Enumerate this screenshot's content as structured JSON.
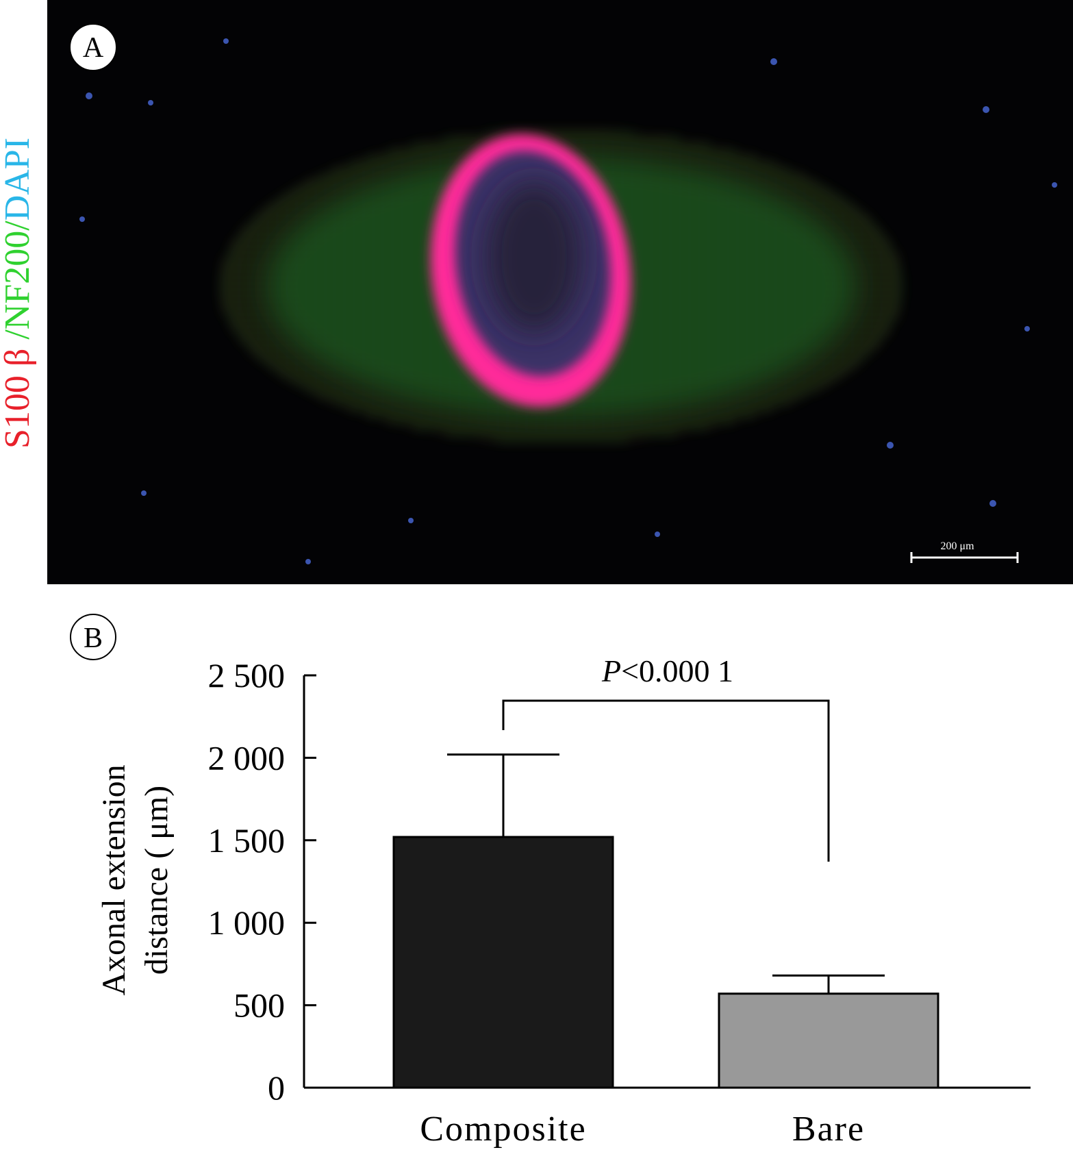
{
  "panel_a": {
    "label": "A",
    "stain_labels": [
      {
        "text": "S100 β",
        "color": "#e8202a"
      },
      {
        "text": " /NF200/",
        "color": "#2fd12f"
      },
      {
        "text": "DAPI",
        "color": "#29b6e8"
      }
    ],
    "scale_bar": "200 μm"
  },
  "chart_data": {
    "type": "bar",
    "panel_label": "B",
    "ylabel": [
      "Axonal extension",
      "distance ( μm)"
    ],
    "categories": [
      "Composite",
      "Bare"
    ],
    "values": [
      1520,
      570
    ],
    "errors": [
      500,
      110
    ],
    "colors": [
      "#1a1a1a",
      "#999999"
    ],
    "ylim": [
      0,
      2500
    ],
    "yticks": [
      0,
      500,
      {
        "value": 1000,
        "label": "1 000"
      },
      {
        "value": 1500,
        "label": "1 500"
      },
      {
        "value": 2000,
        "label": "2 000"
      },
      {
        "value": 2500,
        "label": "2 500"
      }
    ],
    "annotation": {
      "italic": "P",
      "text": "<0.000 1"
    }
  }
}
